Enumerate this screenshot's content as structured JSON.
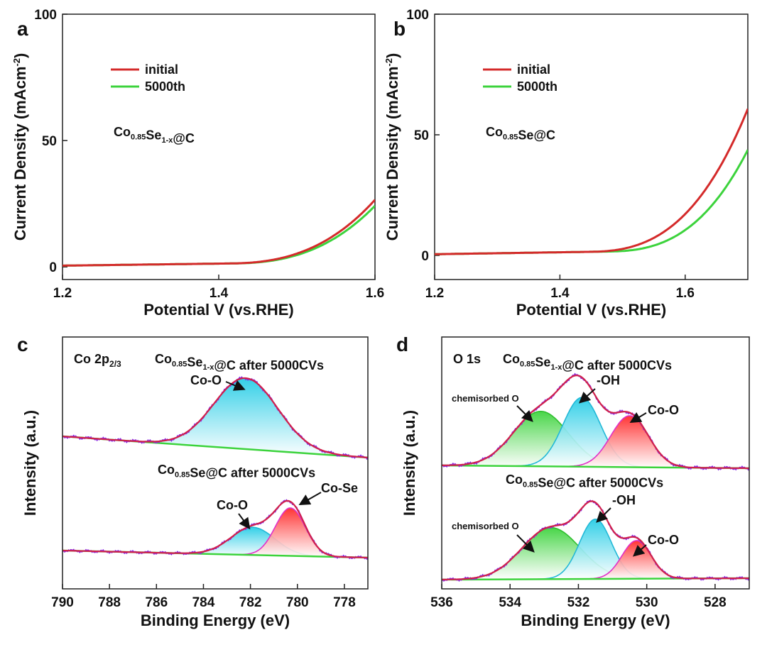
{
  "chart_data": [
    {
      "panel": "a",
      "type": "line",
      "xlabel": "Potential V (vs.RHE)",
      "ylabel": "Current Density (mAcm-2)",
      "ylabel_main": "Current Density (mAcm",
      "ylabel_sup": "-2",
      "ylabel_end": ")",
      "xlim": [
        1.2,
        1.6
      ],
      "ylim": [
        -5,
        100
      ],
      "xticks": [
        "1.2",
        "1.4",
        "1.6"
      ],
      "yticks": [
        "0",
        "50",
        "100"
      ],
      "sample": {
        "main": "Co",
        "sub1": "0.85",
        "mid": "Se",
        "sub2": "1-x",
        "end": "@C"
      },
      "legend": [
        "initial",
        "5000th"
      ],
      "series": [
        {
          "name": "initial",
          "color": "#d42a2a",
          "onset": 1.415,
          "k": 3.05,
          "a": 640
        },
        {
          "name": "5000th",
          "color": "#3cd33c",
          "onset": 1.42,
          "k": 3.05,
          "a": 620
        }
      ]
    },
    {
      "panel": "b",
      "type": "line",
      "xlabel": "Potential V (vs.RHE)",
      "ylabel": "Current Density (mAcm-2)",
      "ylabel_main": "Current Density (mAcm",
      "ylabel_sup": "-2",
      "ylabel_end": ")",
      "xlim": [
        1.2,
        1.7
      ],
      "ylim": [
        -10,
        100
      ],
      "xticks": [
        "1.2",
        "1.4",
        "1.6"
      ],
      "yticks": [
        "0",
        "50",
        "100"
      ],
      "sample": {
        "main": "Co",
        "sub1": "0.85",
        "mid": "Se",
        "sub2": "",
        "end": "@C"
      },
      "legend": [
        "initial",
        "5000th"
      ],
      "series": [
        {
          "name": "initial",
          "color": "#d42a2a",
          "onset": 1.45,
          "k": 4.2,
          "a": 600
        },
        {
          "name": "5000th",
          "color": "#3cd33c",
          "onset": 1.48,
          "k": 4.5,
          "a": 580
        }
      ]
    },
    {
      "panel": "c",
      "type": "line",
      "region": "Co 2p",
      "region_sub": "2/3",
      "xlabel": "Binding Energy (eV)",
      "ylabel": "Intensity (a.u.)",
      "xlim": [
        790,
        777
      ],
      "xticks": [
        "790",
        "788",
        "786",
        "784",
        "782",
        "780",
        "778"
      ],
      "spectra": [
        {
          "title": {
            "main": "Co",
            "sub1": "0.85",
            "mid": "Se",
            "sub2": "1-x",
            "end": "@C after 5000CVs"
          },
          "peaks": [
            {
              "label": "Co-O",
              "center": 782.2,
              "fwhm": 3.2,
              "height": 1.0,
              "fill": "#28cde6"
            }
          ]
        },
        {
          "title": {
            "main": "Co",
            "sub1": "0.85",
            "mid": "Se",
            "sub2": "",
            "end": "@C after 5000CVs"
          },
          "peaks": [
            {
              "label": "Co-O",
              "center": 781.9,
              "fwhm": 2.2,
              "height": 0.52,
              "fill": "#28cde6"
            },
            {
              "label": "Co-Se",
              "center": 780.3,
              "fwhm": 1.5,
              "height": 0.9,
              "fill": "#ff2a2a"
            }
          ]
        }
      ]
    },
    {
      "panel": "d",
      "type": "line",
      "region": "O 1s",
      "xlabel": "Binding Energy (eV)",
      "ylabel": "Intensity (a.u.)",
      "xlim": [
        536,
        527
      ],
      "xticks": [
        "536",
        "534",
        "532",
        "530",
        "528"
      ],
      "spectra": [
        {
          "title": {
            "main": "Co",
            "sub1": "0.85",
            "mid": "Se",
            "sub2": "1-x",
            "end": "@C after 5000CVs"
          },
          "peaks": [
            {
              "label": "chemisorbed O",
              "center": 533.1,
              "fwhm": 1.9,
              "height": 0.62,
              "fill": "#3fd33f"
            },
            {
              "label": "-OH",
              "center": 531.9,
              "fwhm": 1.3,
              "height": 0.78,
              "fill": "#28cde6"
            },
            {
              "label": "Co-O",
              "center": 530.5,
              "fwhm": 1.3,
              "height": 0.58,
              "fill": "#ff2a2a"
            }
          ]
        },
        {
          "title": {
            "main": "Co",
            "sub1": "0.85",
            "mid": "Se",
            "sub2": "",
            "end": "@C after 5000CVs"
          },
          "peaks": [
            {
              "label": "chemisorbed O",
              "center": 532.8,
              "fwhm": 2.0,
              "height": 0.62,
              "fill": "#3fd33f"
            },
            {
              "label": "-OH",
              "center": 531.5,
              "fwhm": 1.1,
              "height": 0.72,
              "fill": "#28cde6"
            },
            {
              "label": "Co-O",
              "center": 530.3,
              "fwhm": 1.0,
              "height": 0.46,
              "fill": "#ff2a2a"
            }
          ]
        }
      ]
    }
  ]
}
